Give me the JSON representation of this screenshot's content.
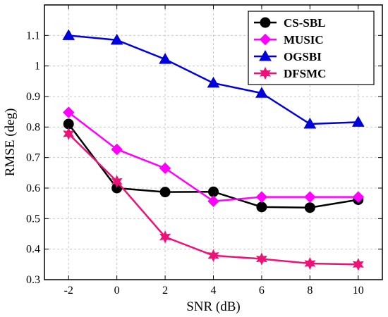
{
  "chart_data": {
    "type": "line",
    "title": "",
    "xlabel": "SNR (dB)",
    "ylabel": "RMSE (deg)",
    "x": [
      -2,
      0,
      2,
      4,
      6,
      8,
      10
    ],
    "xlim": [
      -3,
      11
    ],
    "ylim": [
      0.3,
      1.2
    ],
    "xticks": [
      "-2",
      "0",
      "2",
      "4",
      "6",
      "8",
      "10"
    ],
    "yticks": [
      "0.3",
      "0.4",
      "0.5",
      "0.6",
      "0.7",
      "0.8",
      "0.9",
      "1",
      "1.1"
    ],
    "grid": true,
    "legend_position": "top-right",
    "series": [
      {
        "name": "CS-SBL",
        "color": "#000000",
        "marker": "circle",
        "values": [
          0.81,
          0.6,
          0.587,
          0.588,
          0.538,
          0.536,
          0.562
        ]
      },
      {
        "name": "MUSIC",
        "color": "#ff00ff",
        "marker": "diamond",
        "values": [
          0.848,
          0.727,
          0.665,
          0.557,
          0.571,
          0.571,
          0.571
        ]
      },
      {
        "name": "OGSBI",
        "color": "#0000dd",
        "marker": "triangle",
        "values": [
          1.1,
          1.085,
          1.022,
          0.944,
          0.911,
          0.81,
          0.816
        ]
      },
      {
        "name": "DFSMC",
        "color": "#ee1177",
        "marker": "star",
        "values": [
          0.778,
          0.622,
          0.44,
          0.379,
          0.368,
          0.353,
          0.35
        ]
      }
    ]
  }
}
